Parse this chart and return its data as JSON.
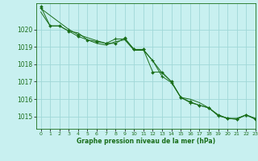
{
  "title": "Graphe pression niveau de la mer (hPa)",
  "background_color": "#c8f0f0",
  "grid_color": "#a0d8d8",
  "line_color": "#1a6e1a",
  "marker_color": "#1a6e1a",
  "xlim": [
    -0.5,
    23
  ],
  "ylim": [
    1014.3,
    1021.5
  ],
  "yticks": [
    1015,
    1016,
    1017,
    1018,
    1019,
    1020
  ],
  "xticks": [
    0,
    1,
    2,
    3,
    4,
    5,
    6,
    7,
    8,
    9,
    10,
    11,
    12,
    13,
    14,
    15,
    16,
    17,
    18,
    19,
    20,
    21,
    22,
    23
  ],
  "series1_x": [
    0,
    1,
    2,
    3,
    4,
    5,
    6,
    7,
    8,
    9,
    10,
    11,
    12,
    13,
    14,
    15,
    16,
    17,
    18,
    19,
    20,
    21,
    22,
    23
  ],
  "series1_y": [
    1021.0,
    1020.2,
    1020.2,
    1019.9,
    1019.8,
    1019.4,
    1019.2,
    1019.1,
    1019.3,
    1019.4,
    1018.8,
    1018.8,
    1018.2,
    1017.5,
    1017.0,
    1016.1,
    1016.0,
    1015.8,
    1015.5,
    1015.1,
    1014.9,
    1014.9,
    1015.1,
    1014.9
  ],
  "series2_x": [
    0,
    1,
    2,
    3,
    4,
    5,
    6,
    7,
    8,
    9,
    10,
    11,
    12,
    13,
    14,
    15,
    16,
    17,
    18,
    19,
    20,
    21,
    22,
    23
  ],
  "series2_y": [
    1021.3,
    1020.2,
    1020.2,
    1019.9,
    1019.6,
    1019.4,
    1019.3,
    1019.2,
    1019.2,
    1019.5,
    1018.85,
    1018.85,
    1017.55,
    1017.55,
    1017.0,
    1016.1,
    1015.85,
    1015.65,
    1015.5,
    1015.1,
    1014.9,
    1014.85,
    1015.1,
    1014.85
  ],
  "series3_x": [
    0,
    3,
    4,
    6,
    7,
    8,
    9,
    10,
    11,
    12,
    13,
    14,
    15,
    16,
    17,
    18,
    19,
    20,
    21,
    22,
    23
  ],
  "series3_y": [
    1021.2,
    1020.0,
    1019.7,
    1019.35,
    1019.2,
    1019.45,
    1019.45,
    1018.85,
    1018.85,
    1018.2,
    1017.3,
    1016.95,
    1016.1,
    1015.8,
    1015.65,
    1015.5,
    1015.05,
    1014.9,
    1014.85,
    1015.1,
    1014.85
  ]
}
